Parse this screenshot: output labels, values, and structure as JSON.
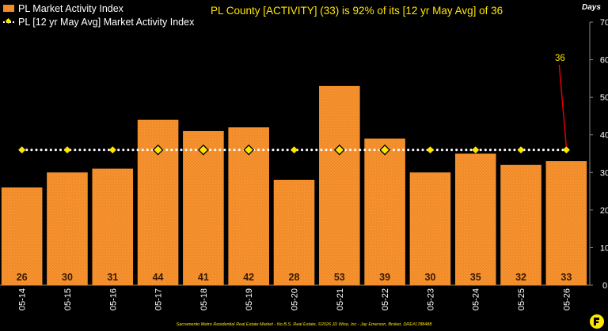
{
  "legend": {
    "bar_label": "PL Market Activity Index",
    "line_label": "PL [12 yr May Avg] Market Activity Index"
  },
  "headline": "PL County [ACTIVITY] (33) is 92% of its [12 yr May Avg] of 36",
  "footer": "Sacramento Metro Residential Real Estate Market - No B.S. Real Estate, ©2026 JD Wise, Inc - Jay Emerson, Broker, DRE#1788488",
  "colors": {
    "bar": "#f28c28",
    "bar_label": "#3a1a00",
    "average_line": "#ffffff",
    "average_marker": "#ffe600",
    "callout": "#ffe600",
    "callout_line": "#e00000",
    "axis_text": "#ffffff"
  },
  "chart_data": {
    "type": "bar",
    "categories": [
      "05-14",
      "05-15",
      "05-16",
      "05-17",
      "05-18",
      "05-19",
      "05-20",
      "05-21",
      "05-22",
      "05-23",
      "05-24",
      "05-25",
      "05-26"
    ],
    "series": [
      {
        "name": "PL Market Activity Index",
        "type": "bar",
        "values": [
          26,
          30,
          31,
          44,
          41,
          42,
          28,
          53,
          39,
          30,
          35,
          32,
          33
        ]
      },
      {
        "name": "PL [12 yr May Avg] Market Activity Index",
        "type": "line",
        "values": [
          36,
          36,
          36,
          36,
          36,
          36,
          36,
          36,
          36,
          36,
          36,
          36,
          36
        ]
      }
    ],
    "y_axis": {
      "position": "right",
      "label": "Days",
      "ylim": [
        0,
        70
      ],
      "ticks": [
        0,
        10,
        20,
        30,
        40,
        50,
        60,
        70
      ]
    },
    "callout": {
      "category": "05-26",
      "text": "36"
    },
    "grid": false,
    "legend_position": "top-left"
  }
}
